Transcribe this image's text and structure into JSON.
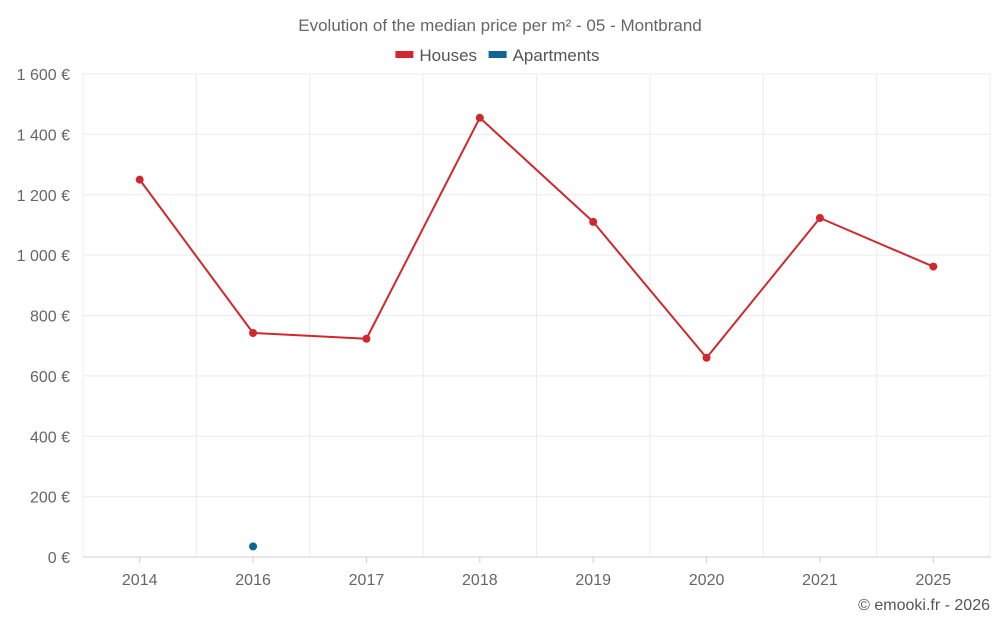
{
  "chart_data": {
    "type": "line",
    "title": "Evolution of the median price per m² - 05 - Montbrand",
    "categories": [
      "2014",
      "2016",
      "2017",
      "2018",
      "2019",
      "2020",
      "2021",
      "2025"
    ],
    "y_ticks": [
      "0 €",
      "200 €",
      "400 €",
      "600 €",
      "800 €",
      "1 000 €",
      "1 200 €",
      "1 400 €",
      "1 600 €"
    ],
    "ylim": [
      0,
      1600
    ],
    "grid": true,
    "legend_position": "top-center",
    "series": [
      {
        "name": "Houses",
        "color": "#d0282e",
        "values": [
          1250,
          742,
          723,
          1455,
          1110,
          660,
          1123,
          962
        ]
      },
      {
        "name": "Apartments",
        "color": "#0e6597",
        "values": [
          null,
          35,
          null,
          null,
          null,
          null,
          null,
          null
        ]
      }
    ],
    "credit": "© emooki.fr - 2026"
  }
}
